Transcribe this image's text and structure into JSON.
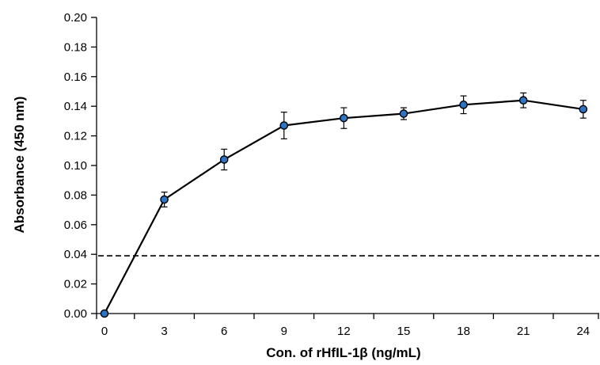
{
  "chart_data": {
    "type": "line",
    "title": "",
    "xlabel": "Con. of rHfIL-1β (ng/mL)",
    "ylabel": "Absorbance (450 nm)",
    "x": [
      0,
      3,
      6,
      9,
      12,
      15,
      18,
      21,
      24
    ],
    "x_tick_labels": [
      "0",
      "3",
      "6",
      "9",
      "12",
      "15",
      "18",
      "21",
      "24"
    ],
    "y_tick_labels": [
      "0.00",
      "0.02",
      "0.04",
      "0.06",
      "0.08",
      "0.10",
      "0.12",
      "0.14",
      "0.16",
      "0.18",
      "0.20"
    ],
    "ylim": [
      0,
      0.2
    ],
    "y_ticks": [
      0,
      0.02,
      0.04,
      0.06,
      0.08,
      0.1,
      0.12,
      0.14,
      0.16,
      0.18,
      0.2
    ],
    "series": [
      {
        "values": [
          0.0,
          0.077,
          0.104,
          0.127,
          0.132,
          0.135,
          0.141,
          0.144,
          0.138
        ],
        "error": [
          0.0,
          0.005,
          0.007,
          0.009,
          0.007,
          0.004,
          0.006,
          0.005,
          0.006
        ],
        "marker_color": "#2e74c4"
      }
    ],
    "reference_line": {
      "y": 0.039,
      "style": "dashed"
    },
    "grid": false,
    "legend": "none"
  }
}
